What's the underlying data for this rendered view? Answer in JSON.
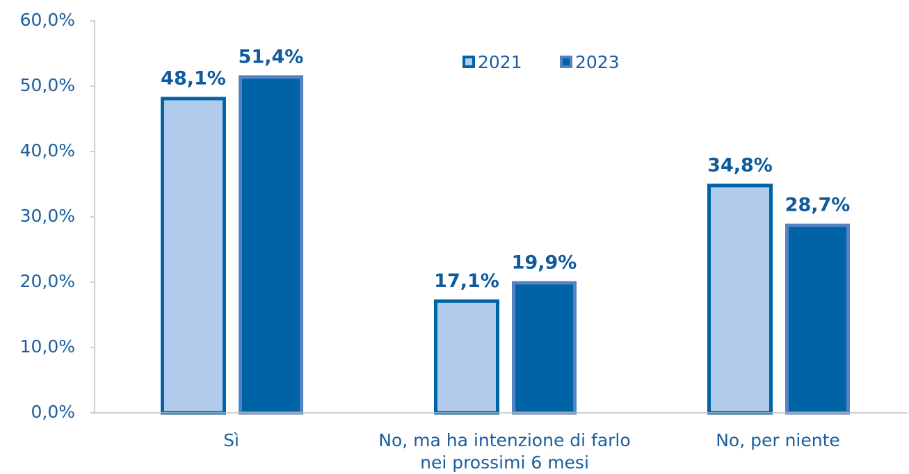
{
  "chart_data": {
    "type": "bar",
    "categories": [
      "Sì",
      "No, ma ha intenzione di farlo nei prossimi 6 mesi",
      "No, per niente"
    ],
    "series": [
      {
        "name": "2021",
        "color": "#b0cbeb",
        "stroke": "#0063a6",
        "values": [
          48.1,
          17.1,
          34.8
        ],
        "value_labels": [
          "48,1%",
          "17,1%",
          "34,8%"
        ]
      },
      {
        "name": "2023",
        "color": "#0063a6",
        "stroke": "#5582c2",
        "values": [
          51.4,
          19.9,
          28.7
        ],
        "value_labels": [
          "51,4%",
          "19,9%",
          "28,7%"
        ]
      }
    ],
    "ylim": [
      0,
      60
    ],
    "yticks": [
      {
        "value": 0,
        "label": "0,0%"
      },
      {
        "value": 10,
        "label": "10,0%"
      },
      {
        "value": 20,
        "label": "20,0%"
      },
      {
        "value": 30,
        "label": "30,0%"
      },
      {
        "value": 40,
        "label": "40,0%"
      },
      {
        "value": 50,
        "label": "50,0%"
      },
      {
        "value": 60,
        "label": "60,0%"
      }
    ],
    "grid": false,
    "legend": "top"
  }
}
